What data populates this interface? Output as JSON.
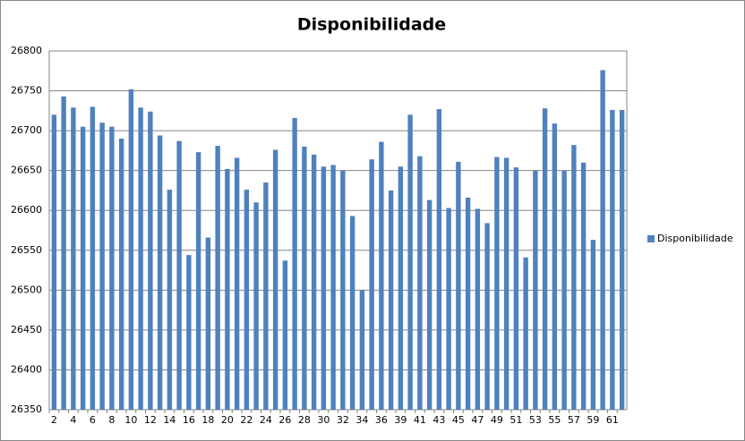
{
  "chart_data": {
    "type": "bar",
    "title": "Disponibilidade",
    "categories": [
      "2",
      null,
      "4",
      null,
      "6",
      null,
      "8",
      null,
      "10",
      null,
      "12",
      null,
      "14",
      null,
      "16",
      null,
      "18",
      null,
      "20",
      null,
      "22",
      null,
      "24",
      null,
      "26",
      null,
      "28",
      null,
      "30",
      null,
      "32",
      null,
      "34",
      null,
      "36",
      null,
      "39",
      null,
      "41",
      null,
      "43",
      null,
      "45",
      null,
      "47",
      null,
      "49",
      null,
      "51",
      null,
      "53",
      null,
      "55",
      null,
      "57",
      null,
      "59",
      null,
      "61",
      null
    ],
    "series": [
      {
        "name": "Disponibilidade",
        "color": "#4f81bd",
        "values": [
          26720,
          26743,
          26729,
          26705,
          26730,
          26710,
          26705,
          26690,
          26752,
          26729,
          26724,
          26694,
          26626,
          26687,
          26544,
          26673,
          26566,
          26681,
          26652,
          26666,
          26626,
          26610,
          26635,
          26676,
          26537,
          26716,
          26680,
          26670,
          26655,
          26657,
          26650,
          26593,
          26500,
          26664,
          26686,
          26625,
          26655,
          26720,
          26668,
          26613,
          26727,
          26603,
          26661,
          26616,
          26602,
          26584,
          26667,
          26666,
          26654,
          26541,
          26650,
          26728,
          26709,
          26650,
          26682,
          26660,
          26563,
          26776,
          26726,
          26726
        ]
      }
    ],
    "ylim": [
      26350,
      26800
    ],
    "yticks": [
      26350,
      26400,
      26450,
      26500,
      26550,
      26600,
      26650,
      26700,
      26750,
      26800
    ],
    "grid": true,
    "legend": "right"
  }
}
